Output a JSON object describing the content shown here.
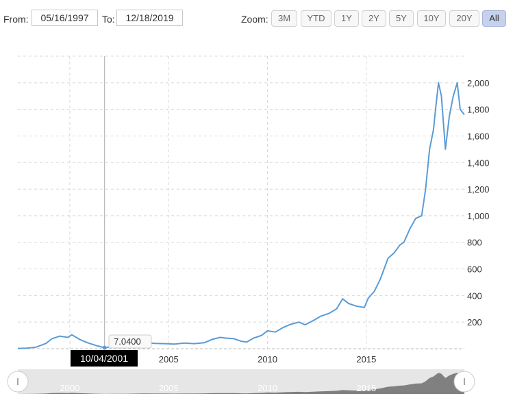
{
  "range": {
    "from_label": "From:",
    "from_value": "05/16/1997",
    "to_label": "To:",
    "to_value": "12/18/2019"
  },
  "zoom": {
    "label": "Zoom:",
    "options": [
      "3M",
      "YTD",
      "1Y",
      "2Y",
      "5Y",
      "10Y",
      "20Y",
      "All"
    ],
    "active": "All"
  },
  "tooltip": {
    "value": "7.0400",
    "date": "10/04/2001"
  },
  "colors": {
    "line": "#5b9bd5",
    "navigator_fill": "#808080",
    "zoom_active": "#c6d2ec"
  },
  "chart_data": {
    "type": "line",
    "title": "",
    "xlabel": "",
    "ylabel": "",
    "x_ticks": [
      "2005",
      "2010",
      "2015"
    ],
    "y_ticks": [
      "200",
      "400",
      "600",
      "800",
      "1,000",
      "1,200",
      "1,400",
      "1,600",
      "1,800",
      "2,000"
    ],
    "xlim": [
      1997.37,
      2019.96
    ],
    "ylim": [
      0,
      2200
    ],
    "y_axis_position": "right",
    "grid": true,
    "legend": "none",
    "navigator_ticks": [
      "2000",
      "2005",
      "2010",
      "2015"
    ],
    "series": [
      {
        "x": [
          1997.37,
          1997.8,
          1998.3,
          1998.8,
          1999.1,
          1999.5,
          1999.9,
          2000.1,
          2000.5,
          2000.9,
          2001.3,
          2001.76,
          2002.2,
          2002.8,
          2003.3,
          2003.8,
          2004.3,
          2004.8,
          2005.3,
          2005.8,
          2006.3,
          2006.8,
          2007.2,
          2007.6,
          2007.9,
          2008.3,
          2008.7,
          2008.95,
          2009.3,
          2009.7,
          2010.0,
          2010.4,
          2010.8,
          2011.2,
          2011.6,
          2011.9,
          2012.3,
          2012.7,
          2013.1,
          2013.5,
          2013.8,
          2014.1,
          2014.5,
          2014.9,
          2015.1,
          2015.4,
          2015.7,
          2015.9,
          2016.1,
          2016.4,
          2016.7,
          2016.9,
          2017.2,
          2017.5,
          2017.8,
          2018.0,
          2018.2,
          2018.4,
          2018.5,
          2018.65,
          2018.8,
          2018.9,
          2019.0,
          2019.2,
          2019.4,
          2019.6,
          2019.75,
          2019.96
        ],
        "y": [
          2,
          4,
          12,
          40,
          75,
          95,
          85,
          105,
          70,
          45,
          25,
          7,
          18,
          22,
          35,
          45,
          40,
          38,
          35,
          42,
          38,
          45,
          70,
          85,
          80,
          75,
          55,
          50,
          80,
          100,
          135,
          125,
          160,
          185,
          200,
          180,
          210,
          245,
          265,
          300,
          375,
          340,
          320,
          310,
          380,
          430,
          520,
          600,
          680,
          720,
          780,
          800,
          900,
          980,
          1000,
          1200,
          1500,
          1650,
          1800,
          2000,
          1900,
          1700,
          1500,
          1750,
          1900,
          2000,
          1800,
          1760
        ]
      }
    ]
  }
}
